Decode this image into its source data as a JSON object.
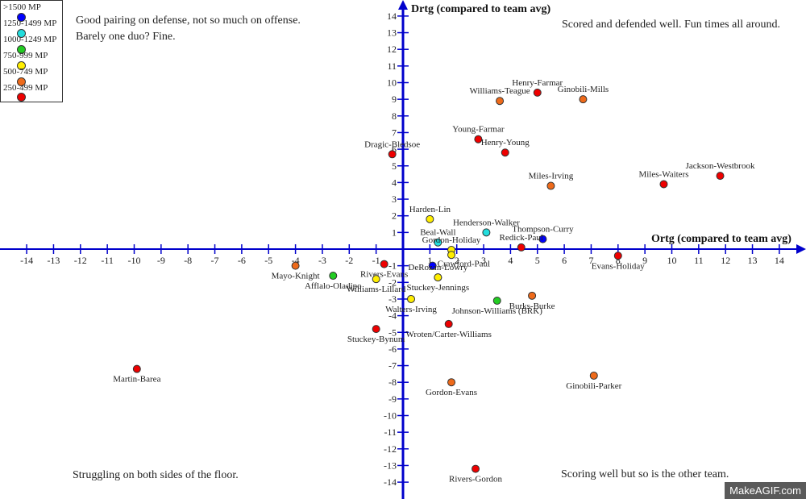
{
  "chart_data": {
    "type": "scatter",
    "title": "",
    "xlabel": "Ortg (compared to team avg)",
    "ylabel": "Drtg (compared to team avg)",
    "xlim": [
      -15,
      15
    ],
    "ylim": [
      -14.5,
      14.5
    ],
    "x_ticks": [
      -14,
      -13,
      -12,
      -11,
      -10,
      -9,
      -8,
      -7,
      -6,
      -5,
      -4,
      -3,
      -2,
      -1,
      1,
      2,
      3,
      4,
      5,
      6,
      7,
      8,
      9,
      10,
      11,
      12,
      13,
      14
    ],
    "y_ticks": [
      14,
      13,
      12,
      11,
      10,
      9,
      8,
      7,
      6,
      5,
      4,
      3,
      2,
      1,
      -1,
      -2,
      -3,
      -4,
      -5,
      -6,
      -7,
      -8,
      -9,
      -10,
      -11,
      -12,
      -13,
      -14
    ],
    "grid": false,
    "legend": {
      "placement": "top-left",
      "entries": [
        {
          "label": ">1500 MP",
          "color": "#0000ff"
        },
        {
          "label": "1250-1499 MP",
          "color": "#22dddd"
        },
        {
          "label": "1000-1249 MP",
          "color": "#22cc22"
        },
        {
          "label": "750-999 MP",
          "color": "#ffee00"
        },
        {
          "label": "500-749 MP",
          "color": "#ee6a1a"
        },
        {
          "label": "250-499 MP",
          "color": "#ee0000"
        }
      ]
    },
    "points": [
      {
        "label": "Henry-Farmar",
        "x": 5.0,
        "y": 9.4,
        "group": "250-499 MP",
        "label_pos": "above"
      },
      {
        "label": "Williams-Teague",
        "x": 3.6,
        "y": 8.9,
        "group": "500-749 MP",
        "label_pos": "above"
      },
      {
        "label": "Ginobili-Mills",
        "x": 6.7,
        "y": 9.0,
        "group": "500-749 MP",
        "label_pos": "above"
      },
      {
        "label": "Young-Farmar",
        "x": 2.8,
        "y": 6.6,
        "group": "250-499 MP",
        "label_pos": "above"
      },
      {
        "label": "Henry-Young",
        "x": 3.8,
        "y": 5.8,
        "group": "250-499 MP",
        "label_pos": "above"
      },
      {
        "label": "Dragic-Bledsoe",
        "x": -0.4,
        "y": 5.7,
        "group": "250-499 MP",
        "label_pos": "above"
      },
      {
        "label": "Miles-Irving",
        "x": 5.5,
        "y": 3.8,
        "group": "500-749 MP",
        "label_pos": "above"
      },
      {
        "label": "Miles-Waiters",
        "x": 9.7,
        "y": 3.9,
        "group": "250-499 MP",
        "label_pos": "above"
      },
      {
        "label": "Jackson-Westbrook",
        "x": 11.8,
        "y": 4.4,
        "group": "250-499 MP",
        "label_pos": "above"
      },
      {
        "label": "Harden-Lin",
        "x": 1.0,
        "y": 1.8,
        "group": "750-999 MP",
        "label_pos": "above"
      },
      {
        "label": "Henderson-Walker",
        "x": 3.1,
        "y": 1.0,
        "group": "1250-1499 MP",
        "label_pos": "above"
      },
      {
        "label": "Beal-Wall",
        "x": 1.3,
        "y": 0.4,
        "group": "1250-1499 MP",
        "label_pos": "above"
      },
      {
        "label": "Thompson-Curry",
        "x": 5.2,
        "y": 0.6,
        "group": ">1500 MP",
        "label_pos": "above"
      },
      {
        "label": "Redick-Paul",
        "x": 4.4,
        "y": 0.1,
        "group": "250-499 MP",
        "label_pos": "above"
      },
      {
        "label": "Gordon-Holiday",
        "x": 1.8,
        "y": -0.05,
        "group": "750-999 MP",
        "label_pos": "above"
      },
      {
        "label": "",
        "x": 1.8,
        "y": -0.35,
        "group": "750-999 MP",
        "label_pos": "none"
      },
      {
        "label": "Evans-Holiday",
        "x": 8.0,
        "y": -0.4,
        "group": "250-499 MP",
        "label_pos": "below"
      },
      {
        "label": "Crawford-Paul",
        "x": 1.1,
        "y": -1.0,
        "group": ">1500 MP",
        "label_pos": "right"
      },
      {
        "label": "Mayo-Knight",
        "x": -4.0,
        "y": -1.0,
        "group": "500-749 MP",
        "label_pos": "below"
      },
      {
        "label": "Rivers-Evans",
        "x": -0.7,
        "y": -0.9,
        "group": "250-499 MP",
        "label_pos": "below"
      },
      {
        "label": "Afflalo-Oladipo",
        "x": -2.6,
        "y": -1.6,
        "group": "1000-1249 MP",
        "label_pos": "below"
      },
      {
        "label": "Williams-Lillard",
        "x": -1.0,
        "y": -1.8,
        "group": "750-999 MP",
        "label_pos": "below"
      },
      {
        "label": "DeRozan-Lowry",
        "x": 1.3,
        "y": -1.7,
        "group": "750-999 MP",
        "label_pos": "above"
      },
      {
        "label": "Stuckey-Jennings",
        "x": 1.3,
        "y": -1.7,
        "group": "750-999 MP",
        "label_pos": "below"
      },
      {
        "label": "Burks-Burke",
        "x": 4.8,
        "y": -2.8,
        "group": "500-749 MP",
        "label_pos": "below"
      },
      {
        "label": "Walters-Irving",
        "x": 0.3,
        "y": -3.0,
        "group": "750-999 MP",
        "label_pos": "below"
      },
      {
        "label": "Johnson-Williams (BRK)",
        "x": 3.5,
        "y": -3.1,
        "group": "1000-1249 MP",
        "label_pos": "below"
      },
      {
        "label": "Wroten/Carter-Williams",
        "x": 1.7,
        "y": -4.5,
        "group": "250-499 MP",
        "label_pos": "below"
      },
      {
        "label": "Stuckey-Bynum",
        "x": -1.0,
        "y": -4.8,
        "group": "250-499 MP",
        "label_pos": "below"
      },
      {
        "label": "Martin-Barea",
        "x": -9.9,
        "y": -7.2,
        "group": "250-499 MP",
        "label_pos": "below"
      },
      {
        "label": "Gordon-Evans",
        "x": 1.8,
        "y": -8.0,
        "group": "500-749 MP",
        "label_pos": "below"
      },
      {
        "label": "Ginobili-Parker",
        "x": 7.1,
        "y": -7.6,
        "group": "500-749 MP",
        "label_pos": "below"
      },
      {
        "label": "Rivers-Gordon",
        "x": 2.7,
        "y": -13.2,
        "group": "250-499 MP",
        "label_pos": "below"
      }
    ],
    "annotations": {
      "top_left": "Good pairing on defense, not so much on offense.",
      "top_left_2": "Barely one duo? Fine.",
      "top_right": "Scored and defended well. Fun times all around.",
      "bottom_left": "Struggling on both sides of the floor.",
      "bottom_right": "Scoring well but so is the other team."
    }
  },
  "colors": {
    "axis": "#0000cc"
  },
  "watermark": "MakeAGIF.com"
}
